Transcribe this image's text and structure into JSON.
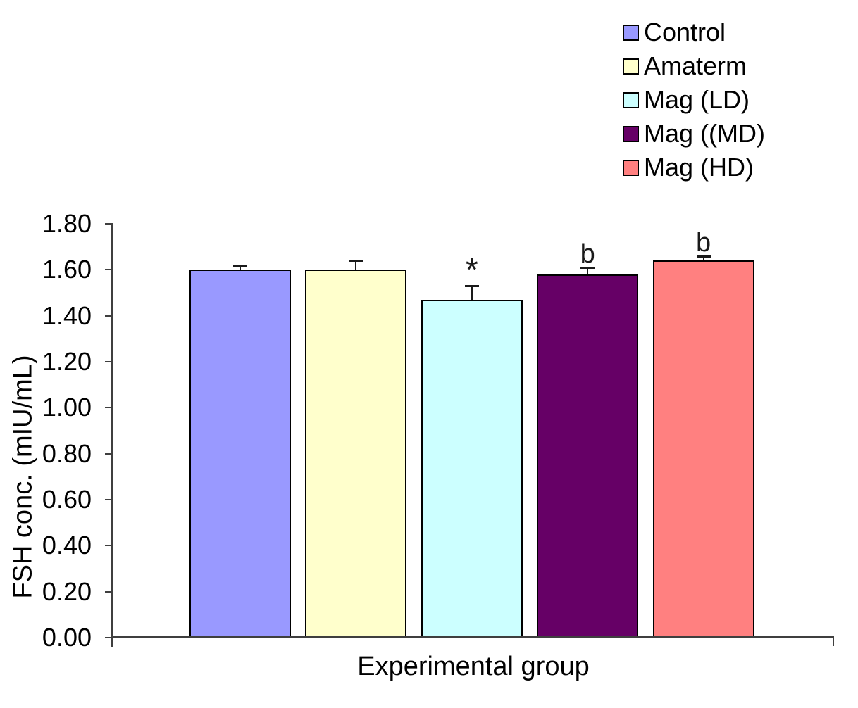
{
  "chart_data": {
    "type": "bar",
    "title": "",
    "xlabel": "Experimental group",
    "ylabel": "FSH conc. (mIU/mL)",
    "ylim": [
      0,
      1.8
    ],
    "ytick_step": 0.2,
    "ytick_decimals": 2,
    "grid": false,
    "categories": [
      "Control",
      "Amaterm",
      "Mag (LD)",
      "Mag ((MD)",
      "Mag (HD)"
    ],
    "values": [
      1.6,
      1.6,
      1.47,
      1.58,
      1.64
    ],
    "errors": [
      0.02,
      0.04,
      0.06,
      0.03,
      0.02
    ],
    "annotations": [
      "",
      "",
      "*",
      "b",
      "b"
    ],
    "colors": [
      "#9999FF",
      "#FFFFCC",
      "#CCFFFF",
      "#660066",
      "#FF8080"
    ],
    "bar_border_color": "#000000",
    "axis_color": "#3f3f3f",
    "legend": {
      "position": "top-right",
      "entries": [
        {
          "label": "Control",
          "color": "#9999FF"
        },
        {
          "label": "Amaterm",
          "color": "#FFFFCC"
        },
        {
          "label": "Mag (LD)",
          "color": "#CCFFFF"
        },
        {
          "label": "Mag ((MD)",
          "color": "#660066"
        },
        {
          "label": "Mag (HD)",
          "color": "#FF8080"
        }
      ]
    }
  }
}
